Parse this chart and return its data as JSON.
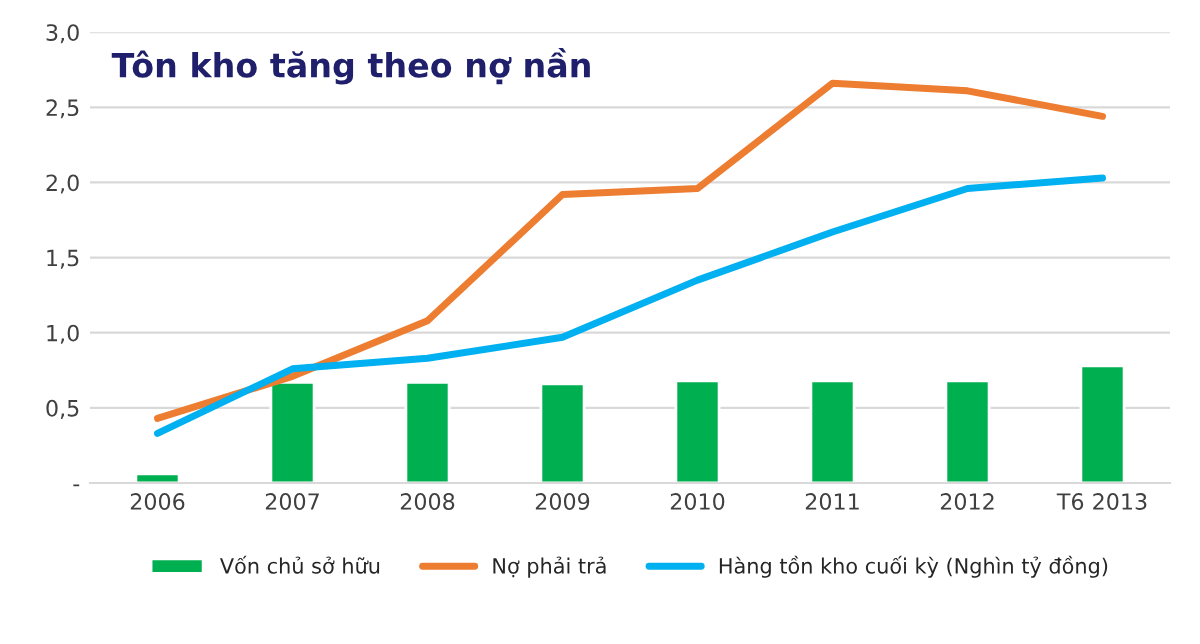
{
  "chart_data": {
    "type": "bar",
    "title": "Tôn kho tăng theo nợ nần",
    "categories": [
      "2006",
      "2007",
      "2008",
      "2009",
      "2010",
      "2011",
      "2012",
      "T6 2013"
    ],
    "series": [
      {
        "name": "Vốn chủ sở hữu",
        "color": "#00b050",
        "values": [
          0.06,
          0.67,
          0.67,
          0.66,
          0.68,
          0.68,
          0.68,
          0.78
        ]
      },
      {
        "name": "Nợ phải trả",
        "type": "line",
        "color": "#ed7d31",
        "values": [
          0.43,
          0.71,
          1.08,
          1.92,
          1.96,
          2.66,
          2.61,
          2.44
        ]
      },
      {
        "name": "Hàng tồn kho cuối kỳ (Nghìn tỷ đồng)",
        "type": "line",
        "color": "#00b0f0",
        "values": [
          0.33,
          0.76,
          0.83,
          0.97,
          1.35,
          1.67,
          1.96,
          2.03
        ]
      }
    ],
    "ylim": [
      0,
      3
    ],
    "yticks": [
      {
        "value": 0,
        "label": "-"
      },
      {
        "value": 0.5,
        "label": "0,5"
      },
      {
        "value": 1,
        "label": "1,0"
      },
      {
        "value": 1.5,
        "label": "1,5"
      },
      {
        "value": 2,
        "label": "2,0"
      },
      {
        "value": 2.5,
        "label": "2,5"
      },
      {
        "value": 3,
        "label": "3,0"
      }
    ],
    "grid": "y",
    "legend": "bottom",
    "line_style": "solid",
    "marker": "none"
  }
}
